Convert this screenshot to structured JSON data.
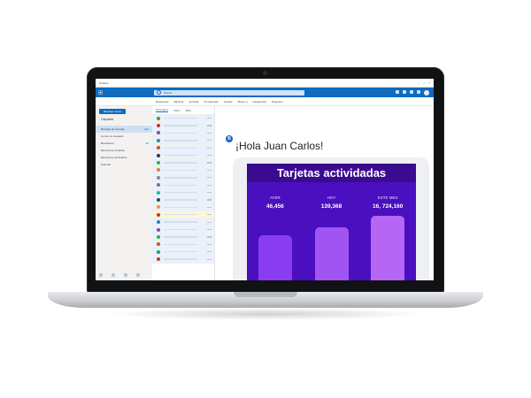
{
  "browser": {
    "tab_title": "Outlook",
    "controls": [
      "–",
      "□",
      "×"
    ]
  },
  "outlook": {
    "search_placeholder": "Buscar",
    "ribbon": [
      "Responder",
      "Eliminar",
      "Archivar",
      "No deseado",
      "Limpiar",
      "Mover a",
      "Categorizar",
      "Posponer"
    ]
  },
  "folders": {
    "new_mail_label": "Mensaje nuevo",
    "header": "Carpetas",
    "items": [
      {
        "label": "Bandeja de entrada",
        "count": "244",
        "active": true
      },
      {
        "label": "Correo no deseado",
        "count": ""
      },
      {
        "label": "Borradores",
        "count": "42"
      },
      {
        "label": "Elementos enviados",
        "count": ""
      },
      {
        "label": "Elementos eliminados",
        "count": ""
      },
      {
        "label": "Historial",
        "count": ""
      }
    ]
  },
  "messages": {
    "tabs": [
      "Prioritarios",
      "Otros",
      "Filtro"
    ],
    "avatar_colors": [
      "#6b8e23",
      "#c0392b",
      "#8e44ad",
      "#16a085",
      "#d35400",
      "#2c3e50",
      "#27ae60",
      "#e67e22",
      "#7f8c8d",
      "#9b59b6",
      "#1abc9c",
      "#34495e",
      "#f39c12",
      "#c0392b",
      "#2980b9",
      "#8e44ad",
      "#27ae60",
      "#d35400",
      "#16a085",
      "#c0392b"
    ]
  },
  "email": {
    "greeting": "¡Hola Juan Carlos!",
    "card": {
      "title": "Tarjetas actividadas",
      "stats": [
        {
          "label": "AYER",
          "value": "46,456",
          "level": 0.58,
          "color": "#8a3cf0"
        },
        {
          "label": "HOY",
          "value": "139,368",
          "level": 0.68,
          "color": "#a055f2"
        },
        {
          "label": "ESTE MES",
          "value": "16, 724,160",
          "level": 0.82,
          "color": "#b566f5"
        }
      ]
    }
  }
}
